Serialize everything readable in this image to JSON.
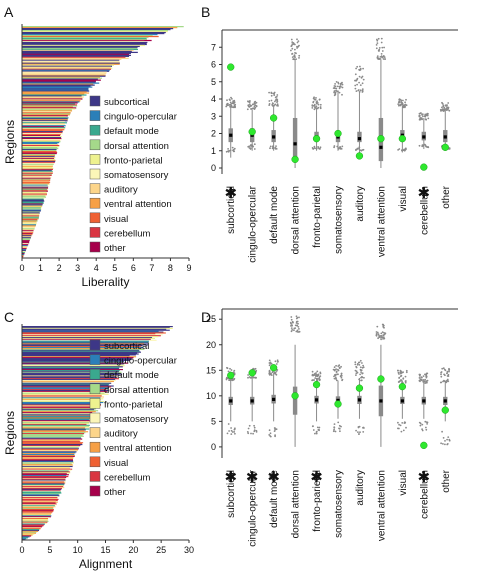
{
  "colors": {
    "subcortical": "#3d3787",
    "cingulo-opercular": "#2b7fb8",
    "default mode": "#3aa88e",
    "dorsal attention": "#a5d98a",
    "fronto-parietal": "#eef28f",
    "somatosensory": "#fbf6b8",
    "auditory": "#fcd58a",
    "ventral attention": "#f6a046",
    "visual": "#ef6133",
    "cerebellum": "#d93541",
    "other": "#a6004a",
    "box": "#8a8a8a",
    "dot": "#2ee82e",
    "median": "#000000",
    "axis": "#333333"
  },
  "legend_entries": [
    "subcortical",
    "cingulo-opercular",
    "default mode",
    "dorsal attention",
    "fronto-parietal",
    "somatosensory",
    "auditory",
    "ventral attention",
    "visual",
    "cerebellum",
    "other"
  ],
  "chart_data": [
    {
      "panel": "A",
      "type": "bar",
      "orientation": "horizontal-sorted",
      "xlabel": "Liberality",
      "ylabel": "Regions",
      "xlim": [
        0,
        9
      ],
      "xticks": [
        0,
        1,
        2,
        3,
        4,
        5,
        6,
        7,
        8,
        9
      ],
      "n_regions": 234,
      "value_profile": [
        [
          0,
          8.9
        ],
        [
          0.02,
          7.8
        ],
        [
          0.05,
          7.0
        ],
        [
          0.09,
          6.4
        ],
        [
          0.14,
          5.5
        ],
        [
          0.2,
          4.6
        ],
        [
          0.26,
          3.8
        ],
        [
          0.33,
          3.0
        ],
        [
          0.4,
          2.4
        ],
        [
          0.5,
          2.0
        ],
        [
          0.6,
          1.7
        ],
        [
          0.7,
          1.4
        ],
        [
          0.8,
          1.0
        ],
        [
          0.88,
          0.65
        ],
        [
          0.95,
          0.3
        ],
        [
          1,
          0.05
        ]
      ],
      "legend_placement": "right"
    },
    {
      "panel": "B",
      "type": "box",
      "categories": [
        "subcortical",
        "cingulo-opercular",
        "default mode",
        "dorsal attention",
        "fronto-parietal",
        "somatosensory",
        "auditory",
        "ventral attention",
        "visual",
        "cerebellum",
        "other"
      ],
      "starred": [
        "subcortical",
        "cerebellum"
      ],
      "ylim": [
        0,
        8
      ],
      "yticks": [
        0,
        1,
        2,
        3,
        4,
        5,
        6,
        7
      ],
      "observed": [
        5.85,
        2.1,
        2.9,
        0.5,
        1.7,
        2.0,
        0.7,
        1.7,
        1.7,
        0.05,
        1.2
      ],
      "median": [
        1.9,
        1.9,
        1.8,
        1.4,
        1.8,
        1.8,
        1.7,
        1.2,
        1.9,
        1.8,
        1.8
      ],
      "q1": [
        1.5,
        1.5,
        1.5,
        0.4,
        1.6,
        1.5,
        1.5,
        0.4,
        1.6,
        1.6,
        1.5
      ],
      "q3": [
        2.3,
        2.3,
        2.2,
        2.9,
        2.1,
        2.1,
        2.1,
        2.9,
        2.2,
        2.1,
        2.2
      ],
      "wmin": [
        0.6,
        1.0,
        1.0,
        0.0,
        1.0,
        1.0,
        0.9,
        0.0,
        0.9,
        1.1,
        1.0
      ],
      "wmax": [
        3.5,
        3.4,
        3.6,
        6.3,
        3.5,
        4.4,
        4.4,
        6.3,
        3.6,
        2.9,
        3.4
      ],
      "outlier_hi": [
        [
          3.5,
          4.1
        ],
        [
          3.4,
          3.9
        ],
        [
          3.6,
          4.4
        ],
        [
          6.3,
          7.5
        ],
        [
          3.4,
          4.1
        ],
        [
          4.2,
          5.0
        ],
        [
          4.4,
          5.9
        ],
        [
          6.3,
          7.5
        ],
        [
          3.5,
          4.0
        ],
        [
          2.8,
          3.2
        ],
        [
          3.3,
          3.8
        ]
      ],
      "outlier_lo": [
        [
          0.9,
          1.2
        ],
        [
          1.1,
          1.4
        ],
        [
          1.1,
          1.3
        ],
        [
          0,
          0
        ],
        [
          1.1,
          1.3
        ],
        [
          1.1,
          1.3
        ],
        [
          1.0,
          1.2
        ],
        [
          0,
          0
        ],
        [
          1.0,
          1.2
        ],
        [
          1.2,
          1.4
        ],
        [
          1.1,
          1.3
        ]
      ]
    },
    {
      "panel": "C",
      "type": "bar",
      "orientation": "horizontal-sorted",
      "xlabel": "Alignment",
      "ylabel": "Regions",
      "xlim": [
        0,
        30
      ],
      "xticks": [
        0,
        5,
        10,
        15,
        20,
        25,
        30
      ],
      "n_regions": 234,
      "value_profile": [
        [
          0,
          27.5
        ],
        [
          0.02,
          25.5
        ],
        [
          0.05,
          24
        ],
        [
          0.1,
          21.5
        ],
        [
          0.16,
          19
        ],
        [
          0.22,
          17.5
        ],
        [
          0.3,
          15.5
        ],
        [
          0.38,
          13.5
        ],
        [
          0.46,
          12
        ],
        [
          0.55,
          10.5
        ],
        [
          0.65,
          9
        ],
        [
          0.75,
          7.5
        ],
        [
          0.84,
          6
        ],
        [
          0.92,
          4.5
        ],
        [
          0.97,
          2.5
        ],
        [
          1,
          0.5
        ]
      ],
      "legend_placement": "right"
    },
    {
      "panel": "D",
      "type": "box",
      "categories": [
        "subcortical",
        "cingulo-opercular",
        "default mode",
        "dorsal attention",
        "fronto-parietal",
        "somatosensory",
        "auditory",
        "ventral attention",
        "visual",
        "cerebellum",
        "other"
      ],
      "starred": [
        "subcortical",
        "cingulo-opercular",
        "default mode",
        "fronto-parietal",
        "cerebellum"
      ],
      "ylim": [
        -1,
        27
      ],
      "yticks": [
        0,
        5,
        10,
        15,
        20,
        25
      ],
      "observed": [
        14.0,
        14.5,
        15.5,
        10.0,
        12.2,
        8.4,
        11.5,
        13.3,
        11.8,
        0.3,
        7.2
      ],
      "median": [
        9.0,
        9.0,
        9.3,
        10.0,
        9.2,
        9.1,
        9.2,
        9.0,
        9.0,
        9.0,
        9.0
      ],
      "q1": [
        8.2,
        8.3,
        8.5,
        6.3,
        8.5,
        8.3,
        8.4,
        6.0,
        8.4,
        8.3,
        8.2
      ],
      "q3": [
        9.8,
        9.8,
        10.2,
        11.8,
        10.0,
        9.9,
        10.0,
        12.0,
        9.8,
        9.8,
        9.8
      ],
      "wmin": [
        5.0,
        5.0,
        5.0,
        0.0,
        5.0,
        5.5,
        5.5,
        0.0,
        5.5,
        5.5,
        5.0
      ],
      "wmax": [
        13.5,
        14.0,
        14.5,
        20.0,
        13.5,
        13.0,
        13.5,
        20.0,
        13.0,
        13.0,
        13.0
      ],
      "outlier_hi": [
        [
          13,
          15.5
        ],
        [
          13.5,
          15.5
        ],
        [
          14,
          17
        ],
        [
          22.5,
          26
        ],
        [
          13,
          15
        ],
        [
          13,
          16
        ],
        [
          13,
          17
        ],
        [
          21,
          24
        ],
        [
          12.5,
          15
        ],
        [
          12.5,
          14.5
        ],
        [
          12.5,
          15.5
        ]
      ],
      "outlier_lo": [
        [
          2.5,
          4.5
        ],
        [
          2.5,
          4.5
        ],
        [
          2.0,
          4.0
        ],
        [
          0,
          0
        ],
        [
          2.5,
          4.5
        ],
        [
          3.0,
          5.0
        ],
        [
          2.5,
          4.5
        ],
        [
          0,
          0
        ],
        [
          3.0,
          5.0
        ],
        [
          3.0,
          5.0
        ],
        [
          0.3,
          3.0
        ]
      ]
    }
  ]
}
